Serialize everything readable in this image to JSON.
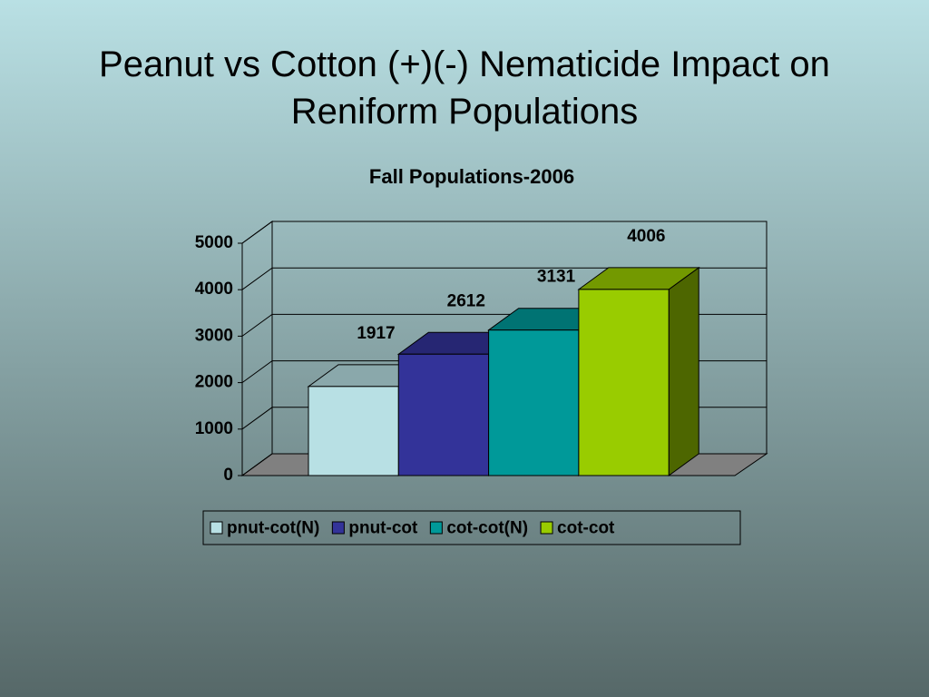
{
  "slide_title": "Peanut vs Cotton (+)(-) Nematicide Impact on Reniform Populations",
  "chart_data": {
    "type": "bar3d",
    "title": "Fall Populations-2006",
    "categories": [
      null
    ],
    "series": [
      {
        "name": "pnut-cot(N)",
        "color": "#b8e0e4",
        "values": [
          1917
        ]
      },
      {
        "name": "pnut-cot",
        "color": "#333399",
        "values": [
          2612
        ]
      },
      {
        "name": "cot-cot(N)",
        "color": "#009999",
        "values": [
          3131
        ]
      },
      {
        "name": "cot-cot",
        "color": "#99cc00",
        "values": [
          4006
        ]
      }
    ],
    "ylim": [
      0,
      5000
    ],
    "yticks": [
      0,
      1000,
      2000,
      3000,
      4000,
      5000
    ],
    "grid": true,
    "legend": "bottom"
  }
}
